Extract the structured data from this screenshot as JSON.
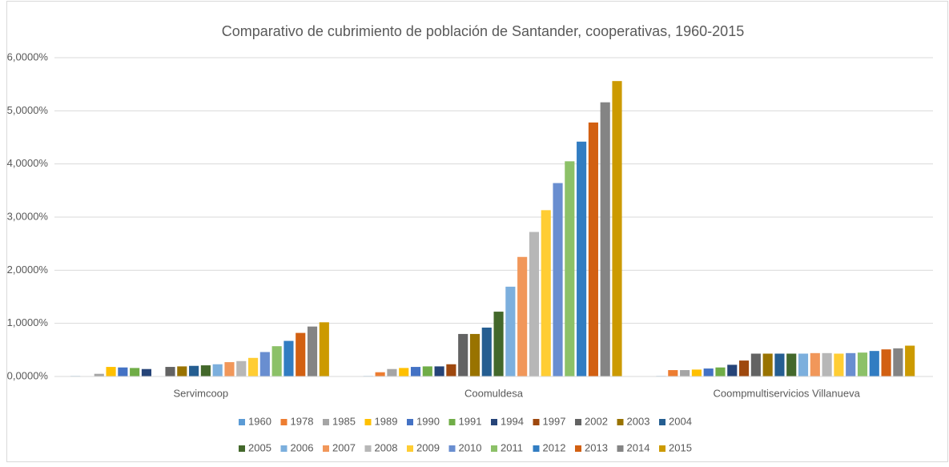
{
  "chart_data": {
    "type": "bar",
    "title": "Comparativo de cubrimiento de población de Santander, cooperativas, 1960-2015",
    "categories": [
      "Servimcoop",
      "Coomuldesa",
      "Coompmultiservicios Villanueva"
    ],
    "ylim": [
      0,
      6
    ],
    "yticks": [
      {
        "value": 0,
        "label": "0,0000%"
      },
      {
        "value": 1,
        "label": "1,0000%"
      },
      {
        "value": 2,
        "label": "2,0000%"
      },
      {
        "value": 3,
        "label": "3,0000%"
      },
      {
        "value": 4,
        "label": "4,0000%"
      },
      {
        "value": 5,
        "label": "5,0000%"
      },
      {
        "value": 6,
        "label": "6,0000%"
      }
    ],
    "grid": true,
    "legend": "bottom",
    "series": [
      {
        "name": "1960",
        "color": "#5b9bd5",
        "values": [
          0.01,
          0.01,
          0.01
        ]
      },
      {
        "name": "1978",
        "color": "#ed7d31",
        "values": [
          0,
          0.08,
          0.12
        ]
      },
      {
        "name": "1985",
        "color": "#a5a5a5",
        "values": [
          0.05,
          0.14,
          0.12
        ]
      },
      {
        "name": "1989",
        "color": "#ffc000",
        "values": [
          0.18,
          0.16,
          0.13
        ]
      },
      {
        "name": "1990",
        "color": "#4472c4",
        "values": [
          0.17,
          0.18,
          0.15
        ]
      },
      {
        "name": "1991",
        "color": "#70ad47",
        "values": [
          0.16,
          0.19,
          0.17
        ]
      },
      {
        "name": "1994",
        "color": "#264478",
        "values": [
          0.14,
          0.19,
          0.22
        ]
      },
      {
        "name": "1997",
        "color": "#9e480e",
        "values": [
          0,
          0.23,
          0.3
        ]
      },
      {
        "name": "2002",
        "color": "#636363",
        "values": [
          0.18,
          0.8,
          0.43
        ]
      },
      {
        "name": "2003",
        "color": "#997300",
        "values": [
          0.19,
          0.8,
          0.43
        ]
      },
      {
        "name": "2004",
        "color": "#255e91",
        "values": [
          0.2,
          0.92,
          0.43
        ]
      },
      {
        "name": "2005",
        "color": "#43682b",
        "values": [
          0.21,
          1.22,
          0.43
        ]
      },
      {
        "name": "2006",
        "color": "#7cafdd",
        "values": [
          0.23,
          1.69,
          0.43
        ]
      },
      {
        "name": "2007",
        "color": "#f1975a",
        "values": [
          0.27,
          2.25,
          0.44
        ]
      },
      {
        "name": "2008",
        "color": "#b7b7b7",
        "values": [
          0.29,
          2.72,
          0.44
        ]
      },
      {
        "name": "2009",
        "color": "#ffcd33",
        "values": [
          0.35,
          3.13,
          0.43
        ]
      },
      {
        "name": "2010",
        "color": "#698ed0",
        "values": [
          0.46,
          3.64,
          0.44
        ]
      },
      {
        "name": "2011",
        "color": "#8cc168",
        "values": [
          0.57,
          4.05,
          0.45
        ]
      },
      {
        "name": "2012",
        "color": "#327dc2",
        "values": [
          0.67,
          4.42,
          0.48
        ]
      },
      {
        "name": "2013",
        "color": "#d26012",
        "values": [
          0.82,
          4.78,
          0.51
        ]
      },
      {
        "name": "2014",
        "color": "#848484",
        "values": [
          0.94,
          5.16,
          0.53
        ]
      },
      {
        "name": "2015",
        "color": "#cc9a00",
        "values": [
          1.02,
          5.56,
          0.58
        ]
      }
    ]
  }
}
